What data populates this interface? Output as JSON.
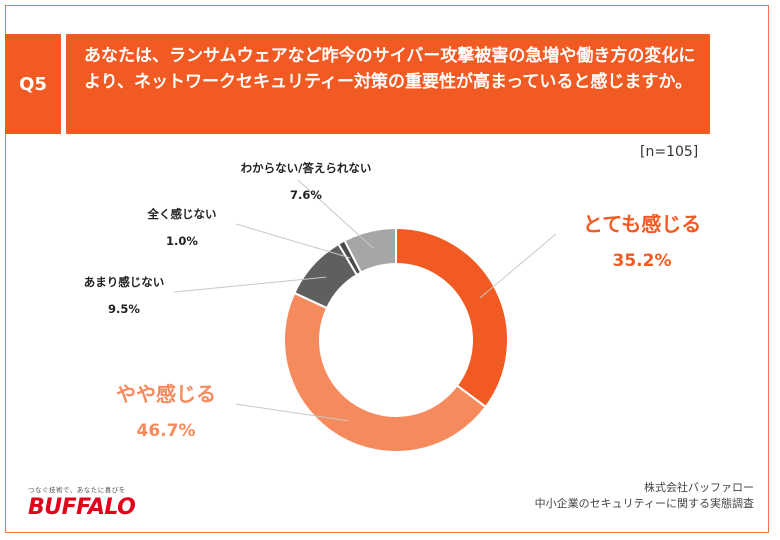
{
  "question": {
    "number": "Q5",
    "text": "あなたは、ランサムウェアなど昨今のサイバー攻撃被害の急増や働き方の変化により、ネットワークセキュリティー対策の重要性が高まっていると感じますか。"
  },
  "sample_size": "[n=105]",
  "colors": {
    "accent": "#f15a22",
    "slices": [
      "#f15a22",
      "#f58a5c",
      "#5f5f5f",
      "#4a4a4a",
      "#a6a6a6"
    ]
  },
  "chart_data": {
    "type": "pie",
    "variant": "donut",
    "title": "",
    "categories": [
      "とても感じる",
      "やや感じる",
      "あまり感じない",
      "全く感じない",
      "わからない/答えられない"
    ],
    "values": [
      35.2,
      46.7,
      9.5,
      1.0,
      7.6
    ],
    "value_labels": [
      "35.2%",
      "46.7%",
      "9.5%",
      "1.0%",
      "7.6%"
    ],
    "unit": "%",
    "start": "12 o'clock",
    "direction": "clockwise"
  },
  "footer": {
    "company": "株式会社バッファロー",
    "survey": "中小企業のセキュリティーに関する実態調査",
    "tagline": "つなぐ技術で、あなたに喜びを",
    "logo_text": "BUFFALO"
  }
}
